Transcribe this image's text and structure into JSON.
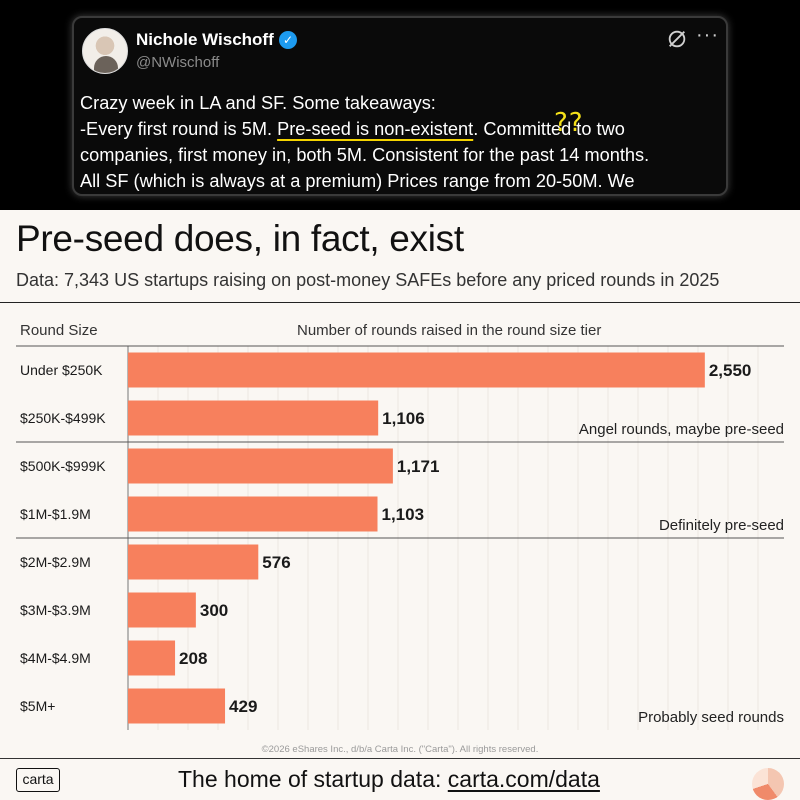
{
  "tweet": {
    "author_name": "Nichole Wischoff",
    "author_handle": "@NWischoff",
    "verified_icon": "verified-badge-icon",
    "lines": [
      "Crazy week in LA and SF. Some takeaways:",
      "-Every first round is 5M. ",
      "Pre-seed is non-existent",
      ". Committed to two",
      "companies, first money in, both 5M. Consistent for the past 14 months.",
      "All SF (which is always at a premium) Prices range from 20-50M. We"
    ],
    "annotation": "??",
    "annotation_color": "#f5e11a"
  },
  "header": {
    "title": "Pre-seed does, in fact, exist",
    "subtitle": "Data: 7,343 US startups raising on post-money SAFEs before any priced rounds in 2025"
  },
  "chart_data": {
    "type": "bar",
    "orientation": "horizontal",
    "category_header": "Round Size",
    "value_header": "Number of rounds raised in the round size tier",
    "categories": [
      "Under $250K",
      "$250K-$499K",
      "$500K-$999K",
      "$1M-$1.9M",
      "$2M-$2.9M",
      "$3M-$3.9M",
      "$4M-$4.9M",
      "$5M+"
    ],
    "values": [
      2550,
      1106,
      1171,
      1103,
      576,
      300,
      208,
      429
    ],
    "value_labels": [
      "2,550",
      "1,106",
      "1,171",
      "1,103",
      "576",
      "300",
      "208",
      "429"
    ],
    "xlim": [
      0,
      2900
    ],
    "bar_color": "#f7805d",
    "groups": [
      {
        "label": "Angel rounds, maybe pre-seed",
        "first": 0,
        "last": 1
      },
      {
        "label": "Definitely pre-seed",
        "first": 2,
        "last": 3
      },
      {
        "label": "Probably seed rounds",
        "first": 4,
        "last": 7
      }
    ],
    "grid": true
  },
  "footer": {
    "copyright": "©2026 eShares Inc., d/b/a Carta Inc. (\"Carta\"). All rights reserved.",
    "logo_text": "carta",
    "tagline": "The home of startup data: ",
    "link": "carta.com/data"
  }
}
